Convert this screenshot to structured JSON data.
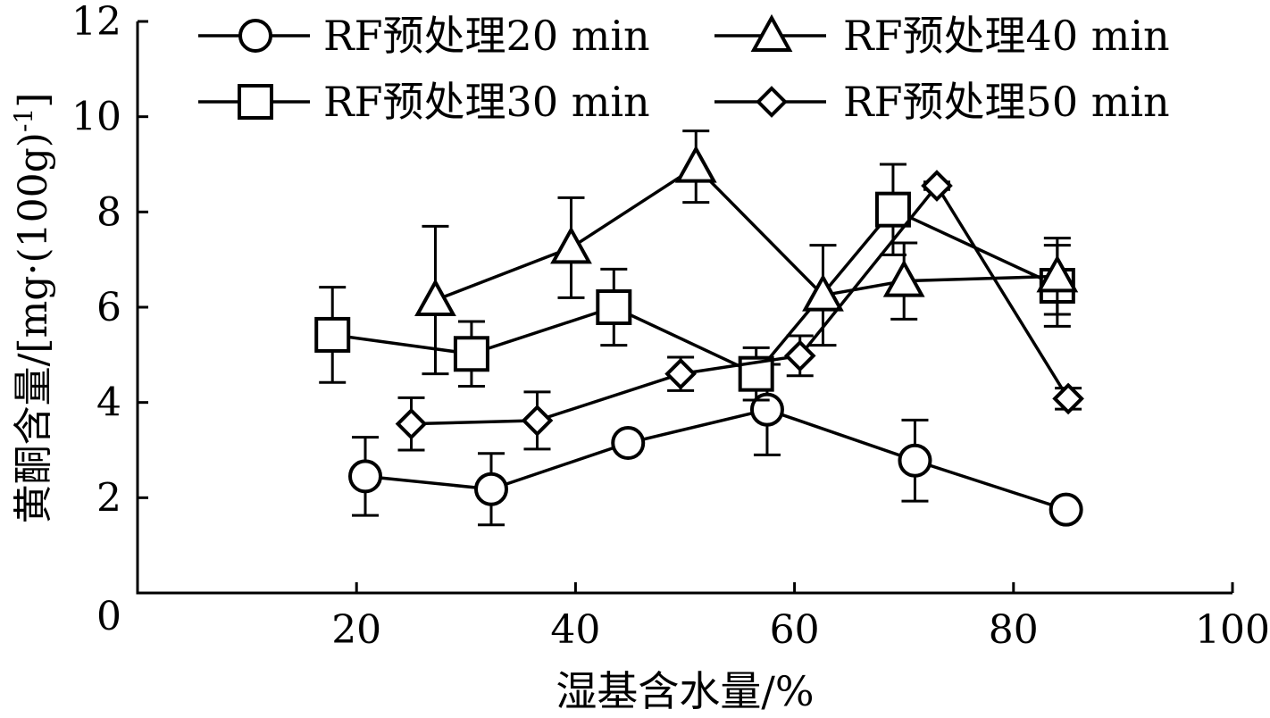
{
  "chart_data": {
    "type": "line",
    "xlabel": "湿基含水量/%",
    "ylabel": "黄酮含量/[mg·(100g)",
    "ylabel_sup": "-1",
    "ylabel_close": "]",
    "xlim": [
      0,
      100
    ],
    "ylim": [
      0,
      12
    ],
    "x_ticks": [
      20,
      40,
      60,
      80,
      100
    ],
    "y_ticks": [
      2,
      4,
      6,
      8,
      10,
      12
    ],
    "origin_label": "0",
    "grid": false,
    "legend_position": "top",
    "series": [
      {
        "name": "RF预处理20 min",
        "marker": "circle",
        "x": [
          20.8,
          32.3,
          44.8,
          57.5,
          71.0,
          84.8
        ],
        "y": [
          2.45,
          2.18,
          3.15,
          3.85,
          2.78,
          1.75
        ],
        "err": [
          0.82,
          0.75,
          0.18,
          0.95,
          0.85,
          0.1
        ]
      },
      {
        "name": "RF预处理30 min",
        "marker": "square",
        "x": [
          17.8,
          30.5,
          43.5,
          56.5,
          69.0,
          84.0
        ],
        "y": [
          5.42,
          5.02,
          6.0,
          4.6,
          8.05,
          6.45
        ],
        "err": [
          1.0,
          0.68,
          0.8,
          0.55,
          0.95,
          0.85
        ]
      },
      {
        "name": "RF预处理40 min",
        "marker": "triangle",
        "x": [
          27.2,
          39.6,
          51.0,
          62.6,
          70.0,
          84.0
        ],
        "y": [
          6.15,
          7.25,
          8.95,
          6.25,
          6.55,
          6.65
        ],
        "err": [
          1.55,
          1.05,
          0.75,
          1.05,
          0.8,
          0.8
        ]
      },
      {
        "name": "RF预处理50 min",
        "marker": "diamond",
        "x": [
          25.0,
          36.5,
          49.6,
          60.5,
          73.0,
          85.0
        ],
        "y": [
          3.55,
          3.62,
          4.6,
          4.98,
          8.55,
          4.08
        ],
        "err": [
          0.55,
          0.6,
          0.35,
          0.42,
          0.08,
          0.22
        ]
      }
    ]
  }
}
